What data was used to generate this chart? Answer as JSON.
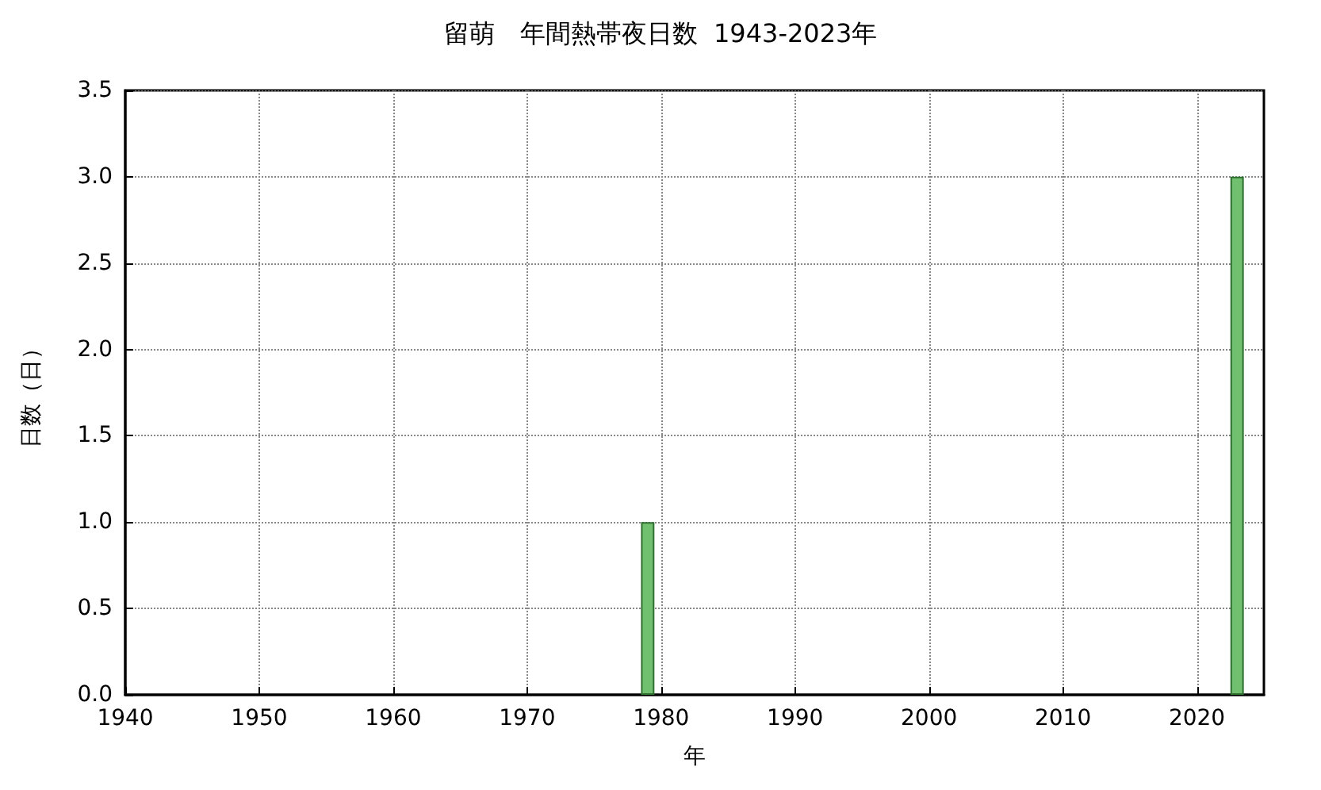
{
  "chart_data": {
    "type": "bar",
    "title": "留萌　年間熱帯夜日数  1943-2023年",
    "xlabel": "年",
    "ylabel": "日数（日）",
    "x": [
      1943,
      1944,
      1945,
      1946,
      1947,
      1948,
      1949,
      1950,
      1951,
      1952,
      1953,
      1954,
      1955,
      1956,
      1957,
      1958,
      1959,
      1960,
      1961,
      1962,
      1963,
      1964,
      1965,
      1966,
      1967,
      1968,
      1969,
      1970,
      1971,
      1972,
      1973,
      1974,
      1975,
      1976,
      1977,
      1978,
      1979,
      1980,
      1981,
      1982,
      1983,
      1984,
      1985,
      1986,
      1987,
      1988,
      1989,
      1990,
      1991,
      1992,
      1993,
      1994,
      1995,
      1996,
      1997,
      1998,
      1999,
      2000,
      2001,
      2002,
      2003,
      2004,
      2005,
      2006,
      2007,
      2008,
      2009,
      2010,
      2011,
      2012,
      2013,
      2014,
      2015,
      2016,
      2017,
      2018,
      2019,
      2020,
      2021,
      2022,
      2023
    ],
    "values": [
      0,
      0,
      0,
      0,
      0,
      0,
      0,
      0,
      0,
      0,
      0,
      0,
      0,
      0,
      0,
      0,
      0,
      0,
      0,
      0,
      0,
      0,
      0,
      0,
      0,
      0,
      0,
      0,
      0,
      0,
      0,
      0,
      0,
      0,
      0,
      0,
      1,
      0,
      0,
      0,
      0,
      0,
      0,
      0,
      0,
      0,
      0,
      0,
      0,
      0,
      0,
      0,
      0,
      0,
      0,
      0,
      0,
      0,
      0,
      0,
      0,
      0,
      0,
      0,
      0,
      0,
      0,
      0,
      0,
      0,
      0,
      0,
      0,
      0,
      0,
      0,
      0,
      0,
      0,
      0,
      3
    ],
    "color": "#70c070",
    "xlim": [
      1940,
      2025
    ],
    "xticks": [
      1940,
      1950,
      1960,
      1970,
      1980,
      1990,
      2000,
      2010,
      2020
    ],
    "ylim": [
      0,
      3.5
    ],
    "yticks": [
      {
        "value": 0,
        "label": "0.0"
      },
      {
        "value": 0.5,
        "label": "0.5"
      },
      {
        "value": 1,
        "label": "1.0"
      },
      {
        "value": 1.5,
        "label": "1.5"
      },
      {
        "value": 2,
        "label": "2.0"
      },
      {
        "value": 2.5,
        "label": "2.5"
      },
      {
        "value": 3,
        "label": "3.0"
      },
      {
        "value": 3.5,
        "label": "3.5"
      }
    ],
    "grid": true
  }
}
